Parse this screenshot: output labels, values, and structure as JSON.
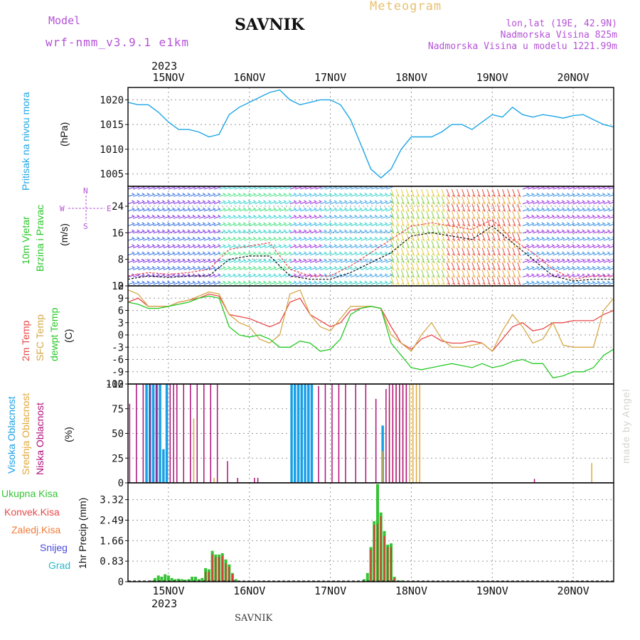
{
  "header": {
    "model_label": "Model",
    "model_name": "wrf-nmm_v3.9.1  e1km",
    "station": "SAVNIK",
    "product": "Meteogram",
    "coords": "lon,lat (19E, 42.9N)",
    "elevation": "Nadmorska Visina 825m",
    "model_elevation": "Nadmorska Visina u modelu 1221.99m",
    "year_top": "2023",
    "year_bottom": "2023"
  },
  "footer": {
    "station": "SAVNIK",
    "credit": "made by Angel"
  },
  "colors": {
    "pressure": "#1ea6e6",
    "temp2m": "#e84848",
    "sfctemp": "#d6a84a",
    "dewpt": "#25c925",
    "high_cloud": "#1aa0e6",
    "mid_cloud": "#e0a83a",
    "low_cloud": "#b0107a",
    "total_precip": "#35c435",
    "conv_precip": "#e03838",
    "snow": "#4a4ae0"
  },
  "panels": {
    "pressure": {
      "label": "Pritisak na nivou mora",
      "unit": "(hPa)"
    },
    "wind": {
      "label1": "10m Vjetar",
      "label2": "Brzina i Pravac",
      "unit": "(m/s)",
      "compass_n": "N",
      "compass_s": "S",
      "compass_w": "W",
      "compass_e": "E"
    },
    "temp": {
      "label1": "2m Temp",
      "label2": "SFC Temp",
      "label3": "dewpt Temp",
      "unit": "(C)"
    },
    "cloud": {
      "label1": "Visoka Oblacnost",
      "label2": "Srednja Oblacnost",
      "label3": "Niska Oblacnost",
      "unit": "(%)"
    },
    "precip": {
      "legend": [
        "Ukupna Kisa",
        "Konvek.Kisa",
        "Zaledj.Kisa",
        "Snijeg",
        "Grad"
      ],
      "legend_colors": [
        "#35c435",
        "#e84848",
        "#f07c3a",
        "#4a4ae0",
        "#2ab8c8"
      ],
      "unit": "1hr Precip (mm)"
    }
  },
  "chart_data": [
    {
      "type": "line",
      "title": "Pritisak na nivou mora",
      "ylabel": "(hPa)",
      "ylim": [
        1002.5,
        1022.5
      ],
      "yticks": [
        "1005",
        "1010",
        "1015",
        "1020"
      ],
      "xticks": [
        "15NOV",
        "16NOV",
        "17NOV",
        "18NOV",
        "19NOV",
        "20NOV"
      ],
      "x_unit": "hours from 2023-11-14 12:00 UTC",
      "series": [
        {
          "x": [
            0,
            3,
            6,
            9,
            12,
            15,
            18,
            21,
            24,
            27,
            30,
            33,
            36,
            39,
            42,
            45,
            48,
            51,
            54,
            57,
            60,
            63,
            66,
            69,
            72,
            75,
            78,
            81,
            84,
            87,
            90,
            93,
            96,
            99,
            102,
            105,
            108,
            111,
            114,
            117,
            120,
            123,
            126,
            129,
            132,
            135,
            138,
            141,
            144
          ],
          "values": [
            1019.5,
            1019,
            1019,
            1017.5,
            1015.5,
            1014,
            1014,
            1013.5,
            1012.5,
            1013,
            1017,
            1018.5,
            1019.5,
            1020.5,
            1021.5,
            1022,
            1020,
            1019,
            1019.5,
            1020,
            1020,
            1019,
            1016,
            1011,
            1006,
            1004.2,
            1006,
            1010,
            1012.5,
            1012.5,
            1012.5,
            1013.5,
            1015,
            1015,
            1014,
            1015.5,
            1017,
            1016.5,
            1018.5,
            1017,
            1016.5,
            1017,
            1016.7,
            1016.3,
            1016.8,
            1017,
            1016,
            1015,
            1014.5
          ]
        }
      ]
    },
    {
      "type": "line",
      "title": "10m Vjetar Brzina i Pravac",
      "ylabel": "(m/s)",
      "ylim": [
        0,
        30
      ],
      "yticks": [
        "0",
        "8",
        "16",
        "24"
      ],
      "series": [
        {
          "x": [
            0,
            6,
            12,
            18,
            24,
            30,
            36,
            42,
            48,
            54,
            60,
            66,
            72,
            78,
            84,
            90,
            96,
            102,
            108,
            114,
            120,
            126,
            132,
            138,
            144
          ],
          "values": [
            3,
            4,
            3.5,
            4,
            5,
            11,
            12,
            13,
            5,
            3,
            3,
            6,
            10,
            14,
            18,
            19,
            18,
            17,
            20,
            14,
            10,
            5,
            2,
            3,
            3
          ]
        },
        {
          "x": [
            0,
            6,
            12,
            18,
            24,
            30,
            36,
            42,
            48,
            54,
            60,
            66,
            72,
            78,
            84,
            90,
            96,
            102,
            108,
            114,
            120,
            126,
            132,
            138,
            144
          ],
          "values": [
            2,
            3,
            2.5,
            3,
            3,
            8,
            9,
            9,
            3,
            2,
            2,
            4,
            7,
            10,
            15,
            16,
            15,
            14,
            18,
            13,
            8,
            3,
            1.5,
            2,
            2
          ]
        }
      ]
    },
    {
      "type": "line",
      "title": "2m Temp / SFC Temp / dewpt Temp",
      "ylabel": "(C)",
      "ylim": [
        -12,
        12
      ],
      "yticks": [
        "-12",
        "-9",
        "-6",
        "-3",
        "0",
        "3",
        "6",
        "9",
        "12"
      ],
      "series": [
        {
          "name": "2m Temp",
          "x": [
            0,
            3,
            6,
            9,
            12,
            15,
            18,
            21,
            24,
            27,
            30,
            33,
            36,
            39,
            42,
            45,
            48,
            51,
            54,
            57,
            60,
            63,
            66,
            69,
            72,
            75,
            78,
            81,
            84,
            87,
            90,
            93,
            96,
            99,
            102,
            105,
            108,
            111,
            114,
            117,
            120,
            123,
            126,
            129,
            132,
            135,
            138,
            141,
            144
          ],
          "values": [
            8,
            9,
            7,
            7,
            7,
            8,
            8.5,
            9,
            10,
            9.5,
            5,
            4.5,
            4,
            3,
            2,
            3,
            8,
            9,
            5,
            3.5,
            2,
            3,
            6,
            6.5,
            7,
            6.5,
            2,
            -2,
            -3.5,
            -1,
            0,
            -1.5,
            -2,
            -2,
            -1.5,
            -2,
            -4,
            -1,
            2,
            3,
            1,
            1.5,
            3,
            3,
            3.5,
            3.5,
            3.5,
            5,
            6
          ]
        },
        {
          "name": "SFC Temp",
          "x": [
            0,
            3,
            6,
            9,
            12,
            15,
            18,
            21,
            24,
            27,
            30,
            33,
            36,
            39,
            42,
            45,
            48,
            51,
            54,
            57,
            60,
            63,
            66,
            69,
            72,
            75,
            78,
            81,
            84,
            87,
            90,
            93,
            96,
            99,
            102,
            105,
            108,
            111,
            114,
            117,
            120,
            123,
            126,
            129,
            132,
            135,
            138,
            141,
            144
          ],
          "values": [
            11,
            10,
            7,
            7,
            7,
            8,
            8.5,
            9.5,
            10.5,
            10,
            5,
            3,
            2,
            -1,
            -2,
            0,
            10,
            11,
            5,
            2,
            1,
            4,
            7,
            7,
            7,
            6.5,
            0,
            -2,
            -4,
            0,
            3,
            -1,
            -3,
            -3,
            -2.5,
            -2,
            -4,
            1,
            5,
            2,
            -2,
            -1,
            3,
            -2.5,
            -3,
            -3,
            -3,
            6,
            9
          ]
        },
        {
          "name": "dewpt Temp",
          "x": [
            0,
            3,
            6,
            9,
            12,
            15,
            18,
            21,
            24,
            27,
            30,
            33,
            36,
            39,
            42,
            45,
            48,
            51,
            54,
            57,
            60,
            63,
            66,
            69,
            72,
            75,
            78,
            81,
            84,
            87,
            90,
            93,
            96,
            99,
            102,
            105,
            108,
            111,
            114,
            117,
            120,
            123,
            126,
            129,
            132,
            135,
            138,
            141,
            144
          ],
          "values": [
            8,
            7.5,
            6.5,
            6.5,
            7,
            7.5,
            8,
            9,
            9.5,
            9,
            2,
            0,
            -0.5,
            0,
            -1,
            -3,
            -3,
            -1.5,
            -2,
            -4,
            -3.5,
            -1,
            5,
            6.5,
            7,
            6.5,
            -2,
            -5,
            -8,
            -8.5,
            -8,
            -7.5,
            -7,
            -7.5,
            -8,
            -7,
            -8,
            -7.5,
            -6.5,
            -6,
            -7,
            -7,
            -10.5,
            -10,
            -9,
            -9,
            -8,
            -5,
            -3.5
          ]
        }
      ]
    },
    {
      "type": "bar",
      "title": "Oblacnost",
      "ylabel": "(%)",
      "ylim": [
        0,
        100
      ],
      "yticks": [
        "0",
        "25",
        "50",
        "75",
        "100"
      ],
      "series": [
        {
          "name": "Visoka Oblacnost",
          "x": [
            5.5,
            6.5,
            7.5,
            8.5,
            9.5,
            10.5,
            11.5,
            48.5,
            49.5,
            50.5,
            51.5,
            52.5,
            53.5,
            54.5,
            75.5
          ],
          "values": [
            100,
            100,
            100,
            100,
            100,
            34,
            100,
            100,
            100,
            100,
            100,
            100,
            100,
            100,
            58
          ]
        },
        {
          "name": "Srednja Oblacnost",
          "x": [
            18.5,
            19.5,
            22.5,
            25.5,
            75.5,
            76.5,
            77.5,
            78.5,
            79.5,
            80.5,
            81.5,
            82.5,
            83.5,
            84.5,
            85.5,
            86.5,
            137.5
          ],
          "values": [
            34,
            65,
            58,
            5,
            32,
            30,
            85,
            95,
            100,
            100,
            100,
            100,
            100,
            100,
            100,
            100,
            20
          ]
        },
        {
          "name": "Niska Oblacnost",
          "x": [
            0.5,
            2.5,
            4.5,
            6.5,
            8.5,
            12.5,
            13.5,
            14.5,
            16.5,
            18.5,
            20.5,
            22.5,
            24.5,
            26.5,
            29.5,
            32.5,
            37.5,
            38.5,
            56.5,
            58.5,
            60.5,
            62.5,
            64.5,
            67.5,
            70.5,
            73.5,
            76.5,
            77.5,
            78.5,
            79.5,
            80.5,
            81.5,
            82.5,
            120.5
          ],
          "values": [
            80,
            100,
            100,
            100,
            100,
            100,
            100,
            100,
            100,
            100,
            100,
            100,
            100,
            100,
            22,
            5,
            5,
            5,
            98,
            100,
            100,
            100,
            100,
            100,
            100,
            85,
            95,
            100,
            100,
            100,
            100,
            100,
            100,
            4
          ]
        }
      ]
    },
    {
      "type": "bar",
      "title": "1hr Precip",
      "ylabel": "1hr Precip (mm)",
      "ylim": [
        0,
        4.0
      ],
      "yticks": [
        "0",
        "0.83",
        "1.66",
        "2.49",
        "3.32"
      ],
      "series": [
        {
          "name": "Ukupna Kisa",
          "x": [
            7,
            8,
            9,
            10,
            11,
            12,
            13,
            14,
            15,
            16,
            17,
            18,
            19,
            20,
            21,
            22,
            23,
            24,
            25,
            26,
            27,
            28,
            29,
            30,
            31,
            32,
            70,
            71,
            72,
            73,
            74,
            75,
            76,
            77,
            78,
            79,
            80,
            81,
            82
          ],
          "values": [
            0.05,
            0.15,
            0.25,
            0.2,
            0.3,
            0.25,
            0.15,
            0.1,
            0.12,
            0.1,
            0.08,
            0.1,
            0.2,
            0.2,
            0.1,
            0.15,
            0.55,
            0.5,
            1.25,
            1.1,
            1.1,
            1.15,
            0.9,
            0.7,
            0.35,
            0.1,
            0.1,
            0.35,
            1.4,
            2.45,
            3.95,
            2.8,
            2.05,
            1.5,
            1.55,
            0.2,
            0.05,
            0.05,
            0.02
          ]
        },
        {
          "name": "Konvek.Kisa",
          "x": [
            23,
            24,
            25,
            26,
            27,
            28,
            29,
            30,
            31,
            72,
            73,
            74,
            75,
            76,
            77,
            78,
            79
          ],
          "values": [
            0.4,
            0.4,
            1.1,
            1.0,
            1.0,
            1.05,
            0.75,
            0.6,
            0.3,
            1.3,
            2.3,
            2.35,
            2.65,
            1.85,
            1.4,
            1.4,
            0.15
          ]
        }
      ]
    }
  ]
}
